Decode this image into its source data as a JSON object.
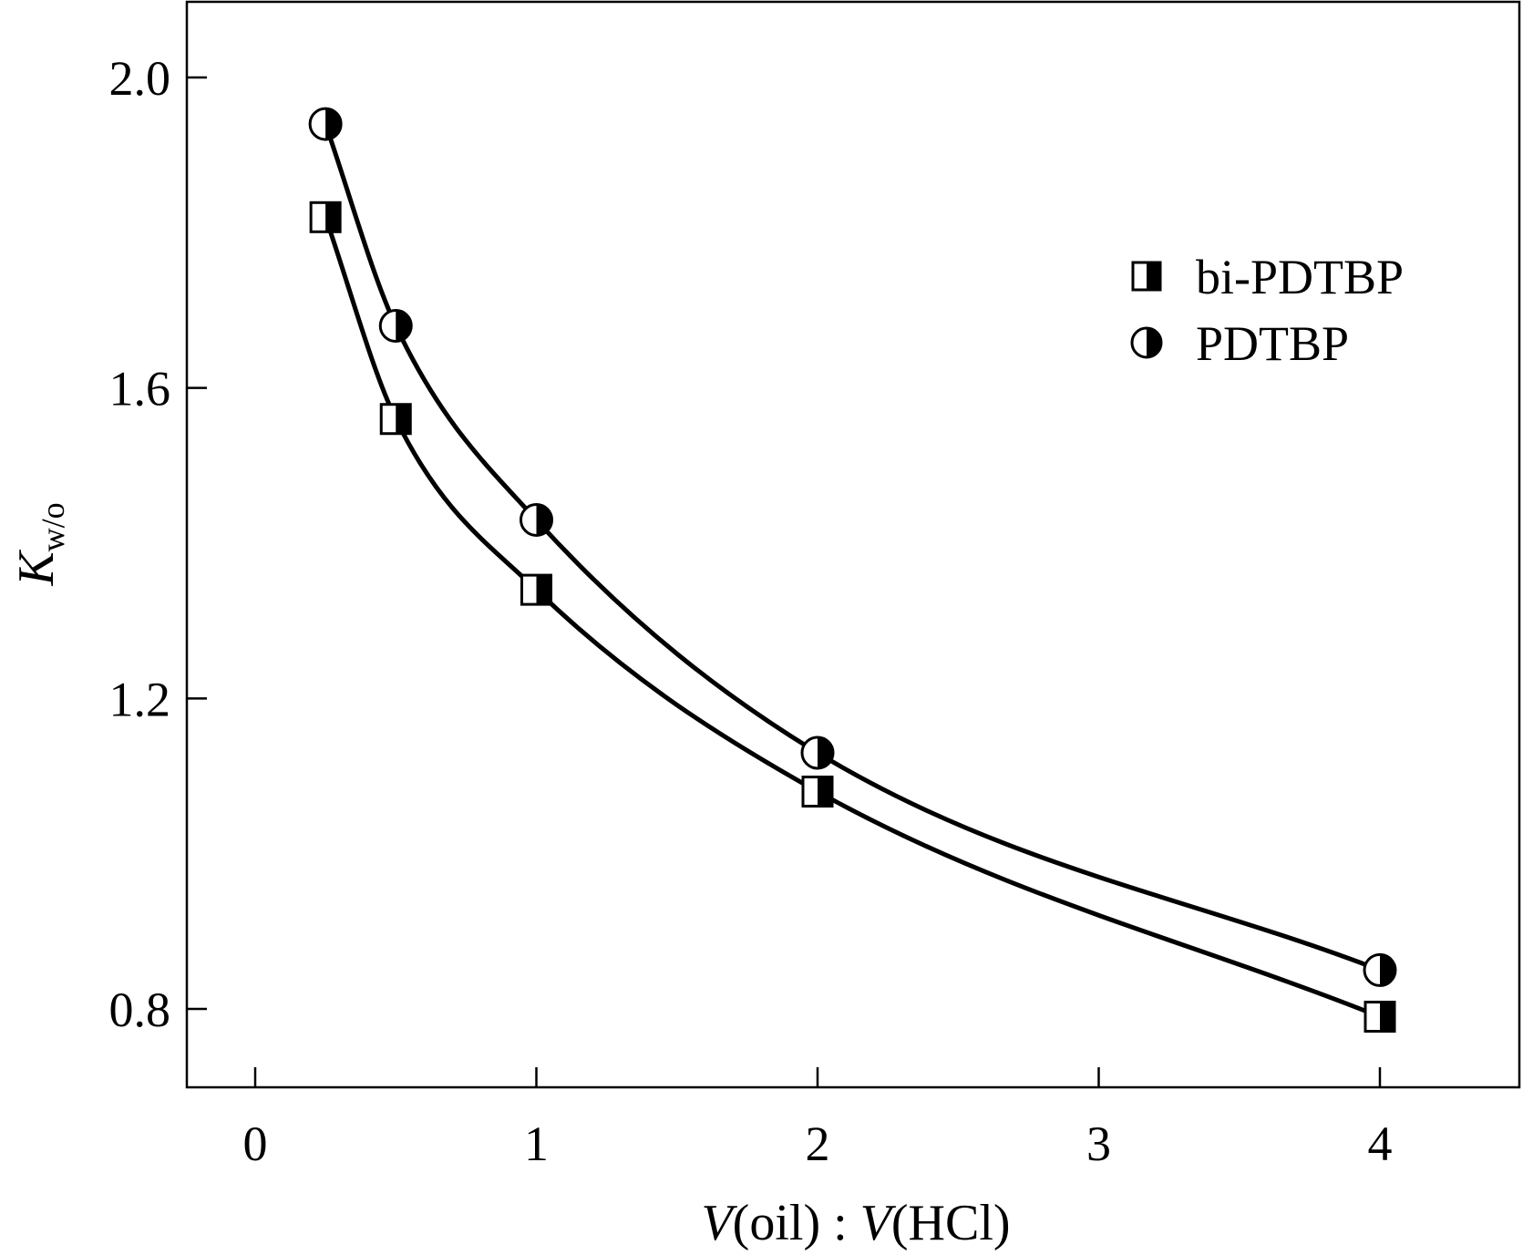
{
  "chart_data": {
    "type": "line",
    "title": "",
    "xlabel": {
      "parts": [
        {
          "text": "V",
          "italic": true
        },
        {
          "text": "(oil) : ",
          "italic": false
        },
        {
          "text": "V",
          "italic": true
        },
        {
          "text": "(HCl)",
          "italic": false
        }
      ]
    },
    "ylabel": {
      "main": "K",
      "sub": "w/o"
    },
    "xlim": [
      -0.25,
      4.5
    ],
    "ylim": [
      0.7,
      2.1
    ],
    "xticks": [
      0,
      1,
      2,
      3,
      4
    ],
    "xtick_labels": [
      "0",
      "1",
      "2",
      "3",
      "4"
    ],
    "yticks": [
      0.8,
      1.2,
      1.6,
      2.0
    ],
    "ytick_labels": [
      "0.8",
      "1.2",
      "1.6",
      "2.0"
    ],
    "grid": false,
    "legend_position": "top-right",
    "series": [
      {
        "name": "bi-PDTBP",
        "marker": "half-filled-square",
        "x": [
          0.25,
          0.5,
          1,
          2,
          4
        ],
        "y": [
          1.82,
          1.56,
          1.34,
          1.08,
          0.79
        ]
      },
      {
        "name": "PDTBP",
        "marker": "half-filled-circle",
        "x": [
          0.25,
          0.5,
          1,
          2,
          4
        ],
        "y": [
          1.94,
          1.68,
          1.43,
          1.13,
          0.85
        ]
      }
    ]
  }
}
